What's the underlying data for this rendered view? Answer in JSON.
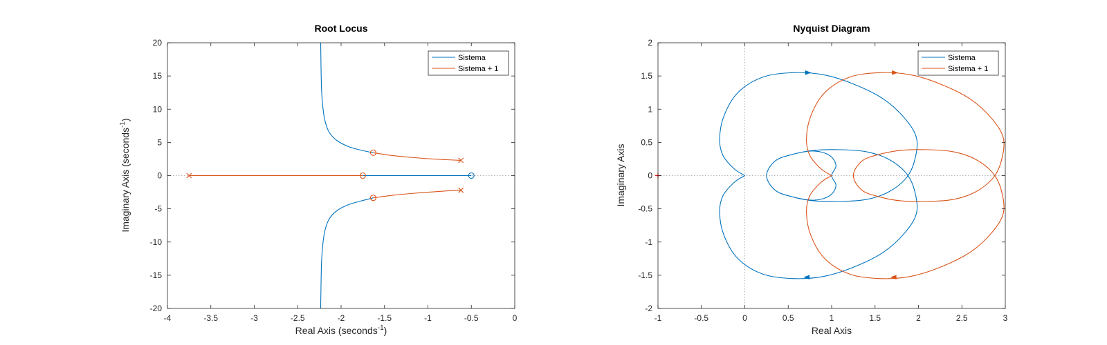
{
  "colors": {
    "series1": "#0072BD",
    "series2": "#D95319",
    "axis": "#262626",
    "zero_line": "#9a9a9a"
  },
  "chart_data": [
    {
      "type": "line",
      "title": "Root Locus",
      "xlabel": "Real Axis (seconds",
      "ylabel": "Imaginary Axis (seconds",
      "label_exponent": "-1",
      "label_close": ")",
      "xlim": [
        -4,
        0
      ],
      "ylim": [
        -20,
        20
      ],
      "xticks": [
        -4,
        -3.5,
        -3,
        -2.5,
        -2,
        -1.5,
        -1,
        -0.5,
        0
      ],
      "xtick_labels": [
        "-4",
        "-3.5",
        "-3",
        "-2.5",
        "-2",
        "-1.5",
        "-1",
        "-0.5",
        "0"
      ],
      "yticks": [
        -20,
        -15,
        -10,
        -5,
        0,
        5,
        10,
        15,
        20
      ],
      "ytick_labels": [
        "-20",
        "-15",
        "-10",
        "-5",
        "0",
        "5",
        "10",
        "15",
        "20"
      ],
      "legend": {
        "position": "top-right",
        "entries": [
          "Sistema",
          "Sistema + 1"
        ]
      },
      "series": [
        {
          "name": "Sistema",
          "color": "series1",
          "branches": [
            [
              [
                -2.235,
                20
              ],
              [
                -2.228,
                14
              ],
              [
                -2.215,
                11
              ],
              [
                -2.19,
                8.5
              ],
              [
                -2.14,
                6.6
              ],
              [
                -2.05,
                5.3
              ],
              [
                -1.92,
                4.4
              ],
              [
                -1.78,
                3.85
              ],
              [
                -1.63,
                3.45
              ]
            ],
            [
              [
                -2.235,
                -20
              ],
              [
                -2.228,
                -14
              ],
              [
                -2.215,
                -11
              ],
              [
                -2.19,
                -8.5
              ],
              [
                -2.14,
                -6.6
              ],
              [
                -2.05,
                -5.3
              ],
              [
                -1.92,
                -4.4
              ],
              [
                -1.78,
                -3.85
              ],
              [
                -1.63,
                -3.35
              ]
            ],
            [
              [
                -1.75,
                0
              ],
              [
                -0.5,
                0
              ]
            ]
          ],
          "poles": [],
          "zeros": [
            [
              -0.5,
              0
            ]
          ]
        },
        {
          "name": "Sistema + 1",
          "color": "series2",
          "branches": [
            [
              [
                -1.63,
                3.45
              ],
              [
                -1.4,
                3.0
              ],
              [
                -1.2,
                2.75
              ],
              [
                -1.0,
                2.55
              ],
              [
                -0.8,
                2.4
              ],
              [
                -0.62,
                2.3
              ]
            ],
            [
              [
                -1.63,
                -3.35
              ],
              [
                -1.4,
                -2.95
              ],
              [
                -1.2,
                -2.7
              ],
              [
                -1.0,
                -2.5
              ],
              [
                -0.8,
                -2.32
              ],
              [
                -0.62,
                -2.2
              ]
            ],
            [
              [
                -3.75,
                0
              ],
              [
                -1.75,
                0
              ]
            ]
          ],
          "poles": [
            [
              -3.75,
              0
            ],
            [
              -0.62,
              2.3
            ],
            [
              -0.62,
              -2.2
            ]
          ],
          "zeros": [
            [
              -1.75,
              0
            ],
            [
              -1.63,
              3.45
            ],
            [
              -1.63,
              -3.35
            ]
          ]
        }
      ]
    },
    {
      "type": "line",
      "title": "Nyquist Diagram",
      "xlabel": "Real Axis",
      "ylabel": "Imaginary Axis",
      "xlim": [
        -1,
        3
      ],
      "ylim": [
        -2,
        2
      ],
      "xticks": [
        -1,
        -0.5,
        0,
        0.5,
        1,
        1.5,
        2,
        2.5,
        3
      ],
      "xtick_labels": [
        "-1",
        "-0.5",
        "0",
        "0.5",
        "1",
        "1.5",
        "2",
        "2.5",
        "3"
      ],
      "yticks": [
        -2,
        -1.5,
        -1,
        -0.5,
        0,
        0.5,
        1,
        1.5,
        2
      ],
      "ytick_labels": [
        "-2",
        "-1.5",
        "-1",
        "-0.5",
        "0",
        "0.5",
        "1",
        "1.5",
        "2"
      ],
      "legend": {
        "position": "top-right",
        "entries": [
          "Sistema",
          "Sistema + 1"
        ]
      },
      "critical_point": [
        -1,
        0
      ],
      "series": [
        {
          "name": "Sistema",
          "color": "series1",
          "curve": [
            [
              0,
              0
            ],
            [
              -0.12,
              0.1
            ],
            [
              -0.25,
              0.3
            ],
            [
              -0.29,
              0.55
            ],
            [
              -0.24,
              0.9
            ],
            [
              -0.08,
              1.25
            ],
            [
              0.2,
              1.48
            ],
            [
              0.55,
              1.55
            ],
            [
              0.9,
              1.52
            ],
            [
              1.25,
              1.38
            ],
            [
              1.6,
              1.15
            ],
            [
              1.85,
              0.85
            ],
            [
              1.98,
              0.55
            ],
            [
              1.95,
              0.2
            ],
            [
              1.85,
              -0.05
            ],
            [
              1.65,
              -0.25
            ],
            [
              1.4,
              -0.36
            ],
            [
              1.1,
              -0.39
            ],
            [
              0.8,
              -0.38
            ],
            [
              0.55,
              -0.32
            ],
            [
              0.35,
              -0.22
            ],
            [
              0.25,
              0
            ],
            [
              0.35,
              0.22
            ],
            [
              0.55,
              0.32
            ],
            [
              0.8,
              0.37
            ],
            [
              0.98,
              0.3
            ],
            [
              1.05,
              0.15
            ],
            [
              1.0,
              0
            ],
            [
              1.05,
              -0.15
            ],
            [
              0.98,
              -0.3
            ],
            [
              0.8,
              -0.37
            ],
            [
              0.55,
              -0.32
            ],
            [
              0.35,
              -0.22
            ],
            [
              0.25,
              0
            ],
            [
              0.35,
              0.22
            ],
            [
              0.55,
              0.32
            ],
            [
              0.8,
              0.38
            ],
            [
              1.1,
              0.39
            ],
            [
              1.4,
              0.36
            ],
            [
              1.65,
              0.25
            ],
            [
              1.85,
              0.05
            ],
            [
              1.95,
              -0.2
            ],
            [
              1.98,
              -0.55
            ],
            [
              1.85,
              -0.85
            ],
            [
              1.6,
              -1.15
            ],
            [
              1.25,
              -1.38
            ],
            [
              0.9,
              -1.52
            ],
            [
              0.55,
              -1.55
            ],
            [
              0.2,
              -1.48
            ],
            [
              -0.08,
              -1.25
            ],
            [
              -0.24,
              -0.9
            ],
            [
              -0.29,
              -0.55
            ],
            [
              -0.25,
              -0.3
            ],
            [
              -0.12,
              -0.1
            ],
            [
              0,
              0
            ]
          ],
          "arrows": [
            [
              0.72,
              1.55,
              1
            ],
            [
              0.72,
              -1.53,
              -1
            ]
          ]
        },
        {
          "name": "Sistema + 1",
          "color": "series2",
          "curve": [
            [
              1,
              0
            ],
            [
              0.88,
              0.1
            ],
            [
              0.75,
              0.3
            ],
            [
              0.71,
              0.55
            ],
            [
              0.76,
              0.9
            ],
            [
              0.92,
              1.25
            ],
            [
              1.2,
              1.48
            ],
            [
              1.55,
              1.55
            ],
            [
              1.9,
              1.52
            ],
            [
              2.25,
              1.38
            ],
            [
              2.6,
              1.15
            ],
            [
              2.85,
              0.85
            ],
            [
              2.98,
              0.55
            ],
            [
              2.95,
              0.2
            ],
            [
              2.85,
              -0.05
            ],
            [
              2.65,
              -0.25
            ],
            [
              2.4,
              -0.36
            ],
            [
              2.1,
              -0.39
            ],
            [
              1.8,
              -0.38
            ],
            [
              1.55,
              -0.32
            ],
            [
              1.35,
              -0.22
            ],
            [
              1.25,
              0
            ],
            [
              1.35,
              0.22
            ],
            [
              1.55,
              0.32
            ],
            [
              1.8,
              0.38
            ],
            [
              2.1,
              0.39
            ],
            [
              2.4,
              0.36
            ],
            [
              2.65,
              0.25
            ],
            [
              2.85,
              0.05
            ],
            [
              2.95,
              -0.2
            ],
            [
              2.98,
              -0.55
            ],
            [
              2.85,
              -0.85
            ],
            [
              2.6,
              -1.15
            ],
            [
              2.25,
              -1.38
            ],
            [
              1.9,
              -1.52
            ],
            [
              1.55,
              -1.55
            ],
            [
              1.2,
              -1.48
            ],
            [
              0.92,
              -1.25
            ],
            [
              0.76,
              -0.9
            ],
            [
              0.71,
              -0.55
            ],
            [
              0.75,
              -0.3
            ],
            [
              0.88,
              -0.1
            ],
            [
              1,
              0
            ]
          ],
          "arrows": [
            [
              1.72,
              1.55,
              1
            ],
            [
              1.72,
              -1.53,
              -1
            ]
          ]
        }
      ]
    }
  ]
}
